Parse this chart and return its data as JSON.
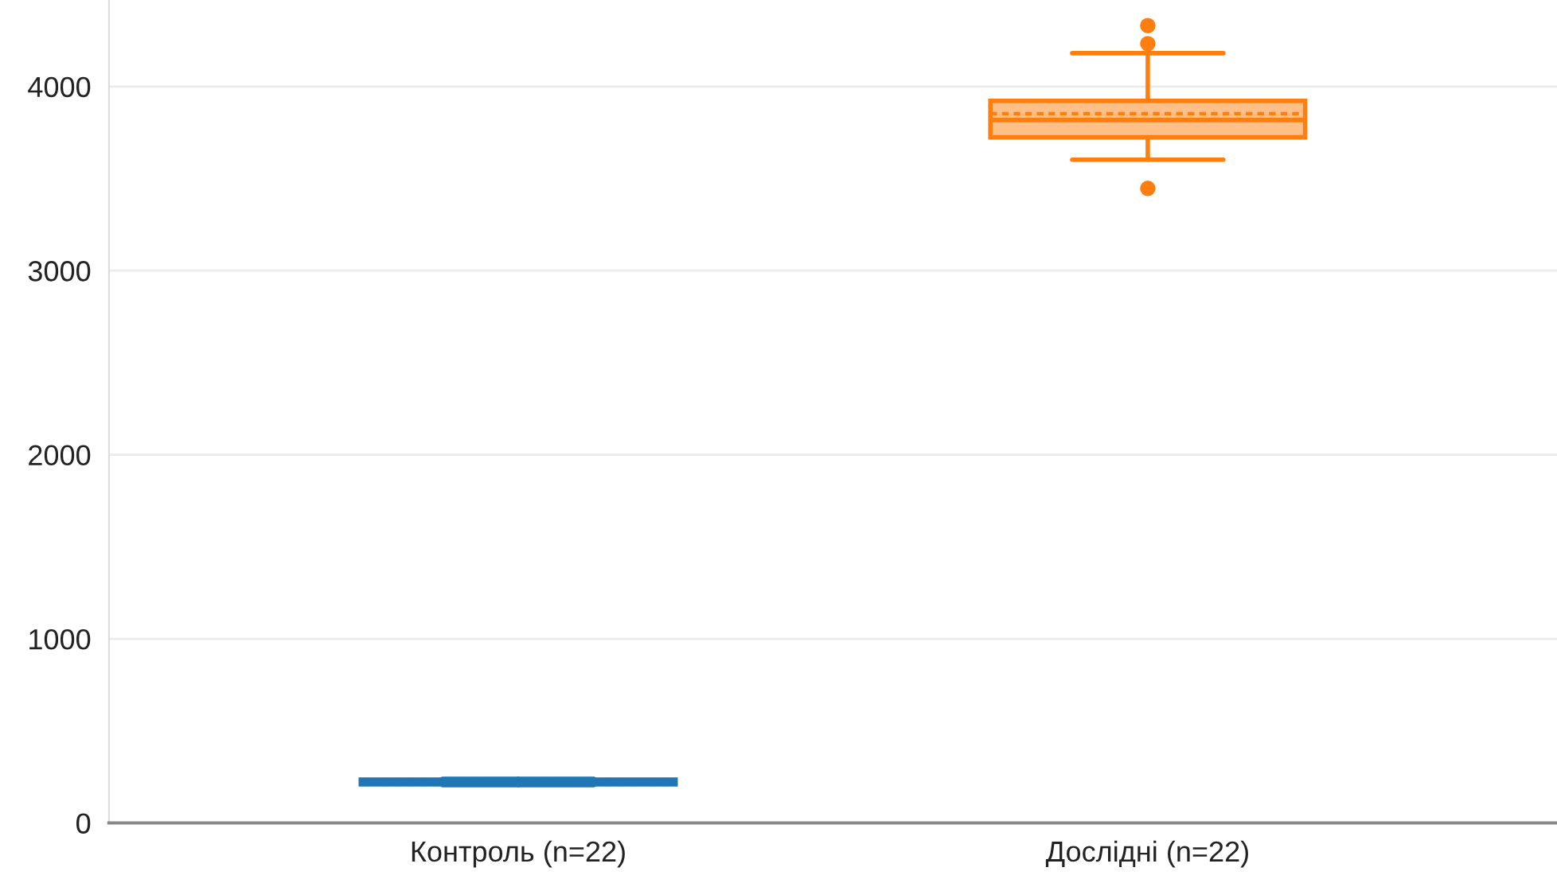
{
  "chart_data": {
    "type": "box",
    "categories": [
      "Контроль (n=22)",
      "Дослідні (n=22)"
    ],
    "colors": [
      "#1f77b4",
      "#ff7f0e"
    ],
    "boxes": [
      {
        "low": 205,
        "q1": 210,
        "median": 220,
        "q3": 235,
        "high": 240,
        "mean": 220
      },
      {
        "low": 3603,
        "q1": 3724,
        "median": 3818,
        "q3": 3922,
        "high": 4181,
        "mean": 3853,
        "outliers": [
          4331,
          4233,
          3447
        ]
      }
    ],
    "ylim": [
      0,
      4470
    ],
    "yticks": [
      0,
      1000,
      2000,
      3000,
      4000
    ],
    "grid": "y"
  }
}
